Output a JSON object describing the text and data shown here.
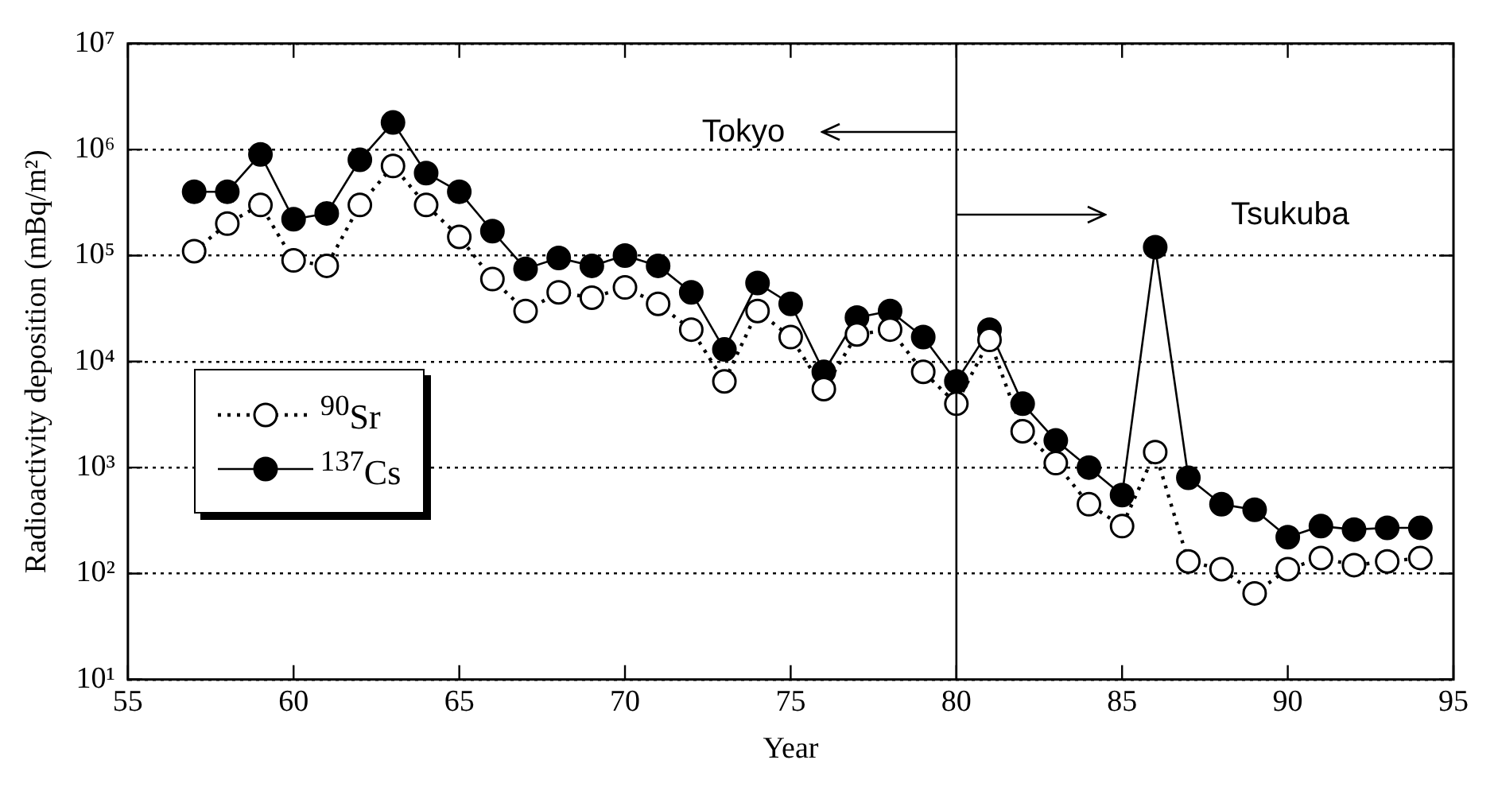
{
  "chart_data": {
    "type": "line",
    "xlabel": "Year",
    "ylabel": "Radioactivity deposition (mBq/m²)",
    "x": [
      57,
      58,
      59,
      60,
      61,
      62,
      63,
      64,
      65,
      66,
      67,
      68,
      69,
      70,
      71,
      72,
      73,
      74,
      75,
      76,
      77,
      78,
      79,
      80,
      81,
      82,
      83,
      84,
      85,
      86,
      87,
      88,
      89,
      90,
      91,
      92,
      93,
      94
    ],
    "series": [
      {
        "name": "$^{90}$Sr",
        "color": "#000000",
        "line_style": "dotted",
        "values": [
          110000,
          200000,
          300000,
          90000,
          80000,
          300000,
          700000,
          300000,
          150000,
          60000,
          30000,
          45000,
          40000,
          50000,
          35000,
          20000,
          6500,
          30000,
          17000,
          5500,
          18000,
          20000,
          8000,
          4000,
          16000,
          2200,
          1100,
          450,
          280,
          1400,
          130,
          110,
          65,
          110,
          140,
          120,
          130,
          140
        ]
      },
      {
        "name": "$^{137}$Cs",
        "color": "#000000",
        "line_style": "solid",
        "values": [
          400000,
          400000,
          900000,
          220000,
          250000,
          800000,
          1800000,
          600000,
          400000,
          170000,
          75000,
          95000,
          80000,
          100000,
          80000,
          45000,
          13000,
          55000,
          35000,
          8000,
          26000,
          30000,
          17000,
          6500,
          20000,
          4000,
          1800,
          1000,
          550,
          120000,
          800,
          450,
          400,
          220,
          280,
          260,
          270,
          270
        ]
      }
    ],
    "log": "y",
    "marker": "circle",
    "grid": "y",
    "legend": "left",
    "xlim": [
      55,
      95
    ],
    "xticks": [
      55,
      60,
      65,
      70,
      75,
      80,
      85,
      90,
      95
    ],
    "ylim": [
      10,
      10000000
    ],
    "yticks": [
      {
        "value": 10,
        "label": "10¹"
      },
      {
        "value": 100,
        "label": "10²"
      },
      {
        "value": 1000,
        "label": "10³"
      },
      {
        "value": 10000,
        "label": "10⁴"
      },
      {
        "value": 100000,
        "label": "10⁵"
      },
      {
        "value": 1000000,
        "label": "10⁶"
      },
      {
        "value": 10000000,
        "label": "10⁷"
      }
    ],
    "ref_lines": [
      {
        "axis": "x",
        "value": 80,
        "color": "#000000"
      }
    ],
    "annotations": [
      "Tokyo",
      "Tsukuba"
    ]
  }
}
